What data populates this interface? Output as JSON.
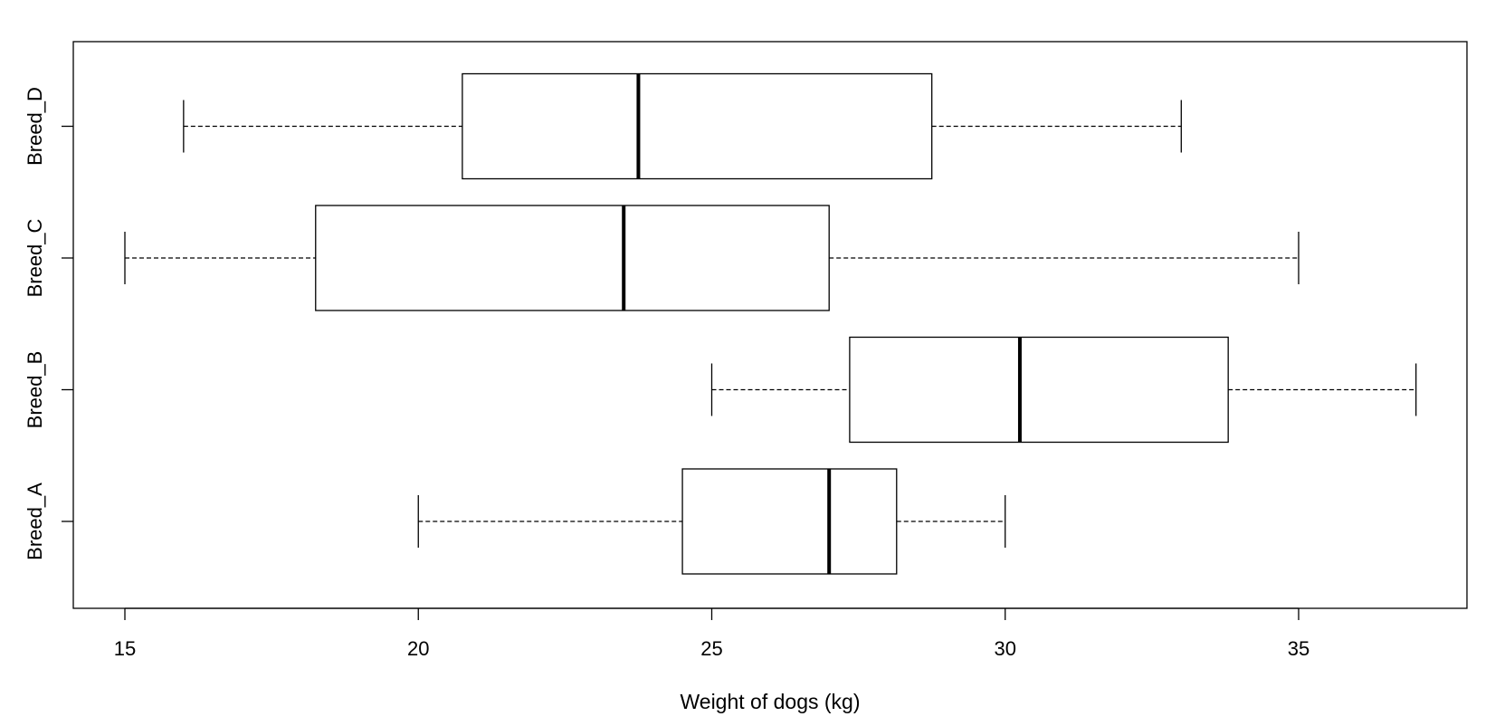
{
  "chart_data": {
    "type": "boxplot",
    "orientation": "horizontal",
    "title": "",
    "xlabel": "Weight of dogs (kg)",
    "ylabel": "",
    "xlim": [
      14.2,
      38.0
    ],
    "x_ticks": [
      15,
      20,
      25,
      30,
      35
    ],
    "grid": false,
    "legend": "none",
    "categories": [
      "Breed_A",
      "Breed_B",
      "Breed_C",
      "Breed_D"
    ],
    "boxes": [
      {
        "name": "Breed_A",
        "min": 20.0,
        "q1": 24.5,
        "median": 27.0,
        "q3": 28.15,
        "max": 30.0
      },
      {
        "name": "Breed_B",
        "min": 25.0,
        "q1": 27.35,
        "median": 30.25,
        "q3": 33.8,
        "max": 37.0
      },
      {
        "name": "Breed_C",
        "min": 15.0,
        "q1": 18.25,
        "median": 23.5,
        "q3": 27.0,
        "max": 35.0
      },
      {
        "name": "Breed_D",
        "min": 16.0,
        "q1": 20.75,
        "median": 23.75,
        "q3": 28.75,
        "max": 33.0
      }
    ],
    "colors": {
      "box_fill": "#ffffff",
      "stroke": "#000000"
    }
  }
}
